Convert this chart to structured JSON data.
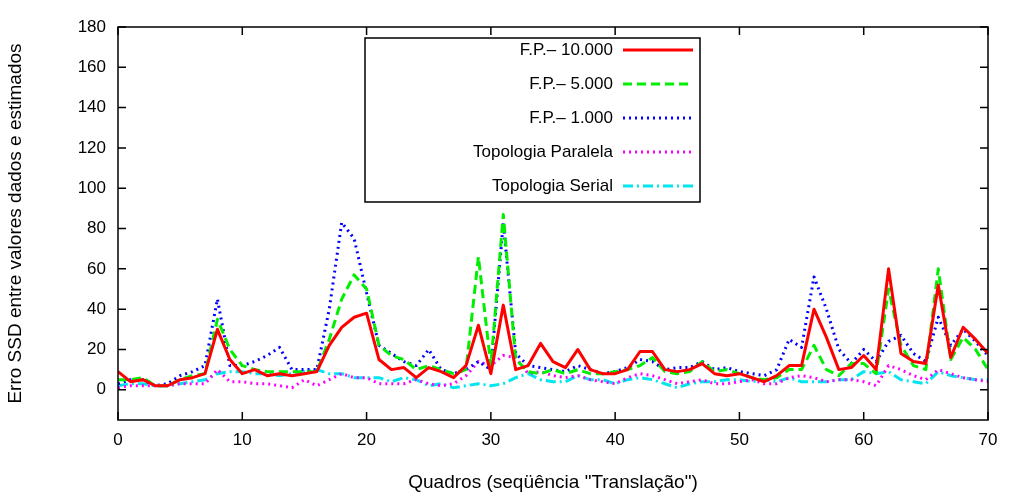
{
  "chart_data": {
    "type": "line",
    "xlabel": "Quadros (seqüência \"Translação\")",
    "ylabel": "Erro SSD entre valores dados e estimados",
    "x": [
      0,
      1,
      2,
      3,
      4,
      5,
      6,
      7,
      8,
      9,
      10,
      11,
      12,
      13,
      14,
      15,
      16,
      17,
      18,
      19,
      20,
      21,
      22,
      23,
      24,
      25,
      26,
      27,
      28,
      29,
      30,
      31,
      32,
      33,
      34,
      35,
      36,
      37,
      38,
      39,
      40,
      41,
      42,
      43,
      44,
      45,
      46,
      47,
      48,
      49,
      50,
      51,
      52,
      53,
      54,
      55,
      56,
      57,
      58,
      59,
      60,
      61,
      62,
      63,
      64,
      65,
      66,
      67,
      68,
      69,
      70
    ],
    "xlim": [
      0,
      70
    ],
    "xticks": [
      0,
      10,
      20,
      30,
      40,
      50,
      60,
      70
    ],
    "ylim": [
      -15,
      180
    ],
    "yticks": [
      0,
      20,
      40,
      60,
      80,
      100,
      120,
      140,
      160,
      180
    ],
    "grid": false,
    "legend": "top",
    "marker": "none",
    "series": [
      {
        "name": "F.P.– 10.000",
        "color": "#ff0000",
        "line_style": "solid",
        "values": [
          9,
          4,
          5,
          2,
          2,
          5,
          6,
          8,
          30,
          15,
          8,
          10,
          7,
          8,
          7,
          8,
          9,
          22,
          31,
          36,
          38,
          15,
          10,
          11,
          6,
          11,
          9,
          6,
          12,
          32,
          8,
          42,
          10,
          12,
          23,
          14,
          11,
          20,
          10,
          8,
          8,
          10,
          19,
          19,
          10,
          9,
          10,
          13,
          8,
          7,
          8,
          6,
          4,
          7,
          12,
          12,
          40,
          26,
          10,
          11,
          17,
          10,
          60,
          18,
          14,
          13,
          52,
          16,
          31,
          25,
          18
        ]
      },
      {
        "name": "F.P.– 5.000",
        "color": "#00ee00",
        "line_style": "dashed",
        "values": [
          5,
          5,
          6,
          2,
          2,
          5,
          7,
          8,
          35,
          20,
          12,
          10,
          9,
          9,
          9,
          9,
          9,
          25,
          45,
          57,
          50,
          22,
          17,
          15,
          10,
          12,
          10,
          8,
          10,
          66,
          12,
          87,
          15,
          9,
          8,
          10,
          8,
          10,
          8,
          8,
          9,
          10,
          12,
          16,
          9,
          8,
          9,
          14,
          9,
          10,
          8,
          6,
          5,
          6,
          10,
          10,
          22,
          10,
          7,
          13,
          13,
          8,
          50,
          22,
          12,
          10,
          60,
          15,
          26,
          20,
          10
        ]
      },
      {
        "name": "F.P.– 1.000",
        "color": "#0000ff",
        "line_style": "dotted",
        "values": [
          3,
          5,
          5,
          2,
          3,
          7,
          9,
          12,
          45,
          12,
          12,
          14,
          17,
          21,
          10,
          10,
          10,
          40,
          83,
          75,
          48,
          22,
          18,
          14,
          12,
          20,
          10,
          8,
          10,
          14,
          10,
          83,
          18,
          12,
          11,
          10,
          9,
          12,
          10,
          8,
          9,
          11,
          15,
          14,
          10,
          11,
          11,
          14,
          10,
          11,
          9,
          8,
          7,
          10,
          25,
          21,
          56,
          40,
          20,
          13,
          20,
          14,
          24,
          27,
          18,
          14,
          36,
          22,
          30,
          24,
          17
        ]
      },
      {
        "name": "Topologia Paralela",
        "color": "#ff00ff",
        "line_style": "dotted",
        "values": [
          1,
          2,
          2,
          2,
          2,
          3,
          3,
          3,
          10,
          4,
          4,
          3,
          3,
          2,
          1,
          5,
          2,
          5,
          8,
          6,
          6,
          3,
          3,
          3,
          5,
          3,
          2,
          3,
          7,
          14,
          12,
          17,
          16,
          8,
          9,
          7,
          6,
          7,
          5,
          4,
          3,
          6,
          8,
          7,
          5,
          3,
          4,
          5,
          3,
          3,
          4,
          5,
          3,
          3,
          6,
          7,
          6,
          4,
          5,
          5,
          4,
          2,
          12,
          10,
          7,
          5,
          10,
          8,
          6,
          5,
          4
        ]
      },
      {
        "name": "Topologia Serial",
        "color": "#00e5ee",
        "line_style": "dashdot",
        "values": [
          2,
          3,
          3,
          2,
          2,
          3,
          4,
          5,
          8,
          9,
          9,
          8,
          8,
          7,
          8,
          9,
          10,
          8,
          8,
          6,
          6,
          6,
          4,
          6,
          5,
          2,
          3,
          1,
          2,
          3,
          2,
          3,
          6,
          8,
          5,
          4,
          4,
          7,
          5,
          5,
          3,
          5,
          6,
          5,
          3,
          1,
          3,
          4,
          4,
          5,
          5,
          4,
          5,
          4,
          6,
          4,
          4,
          4,
          5,
          5,
          9,
          8,
          9,
          5,
          4,
          3,
          9,
          7,
          6,
          5,
          5
        ]
      }
    ]
  }
}
